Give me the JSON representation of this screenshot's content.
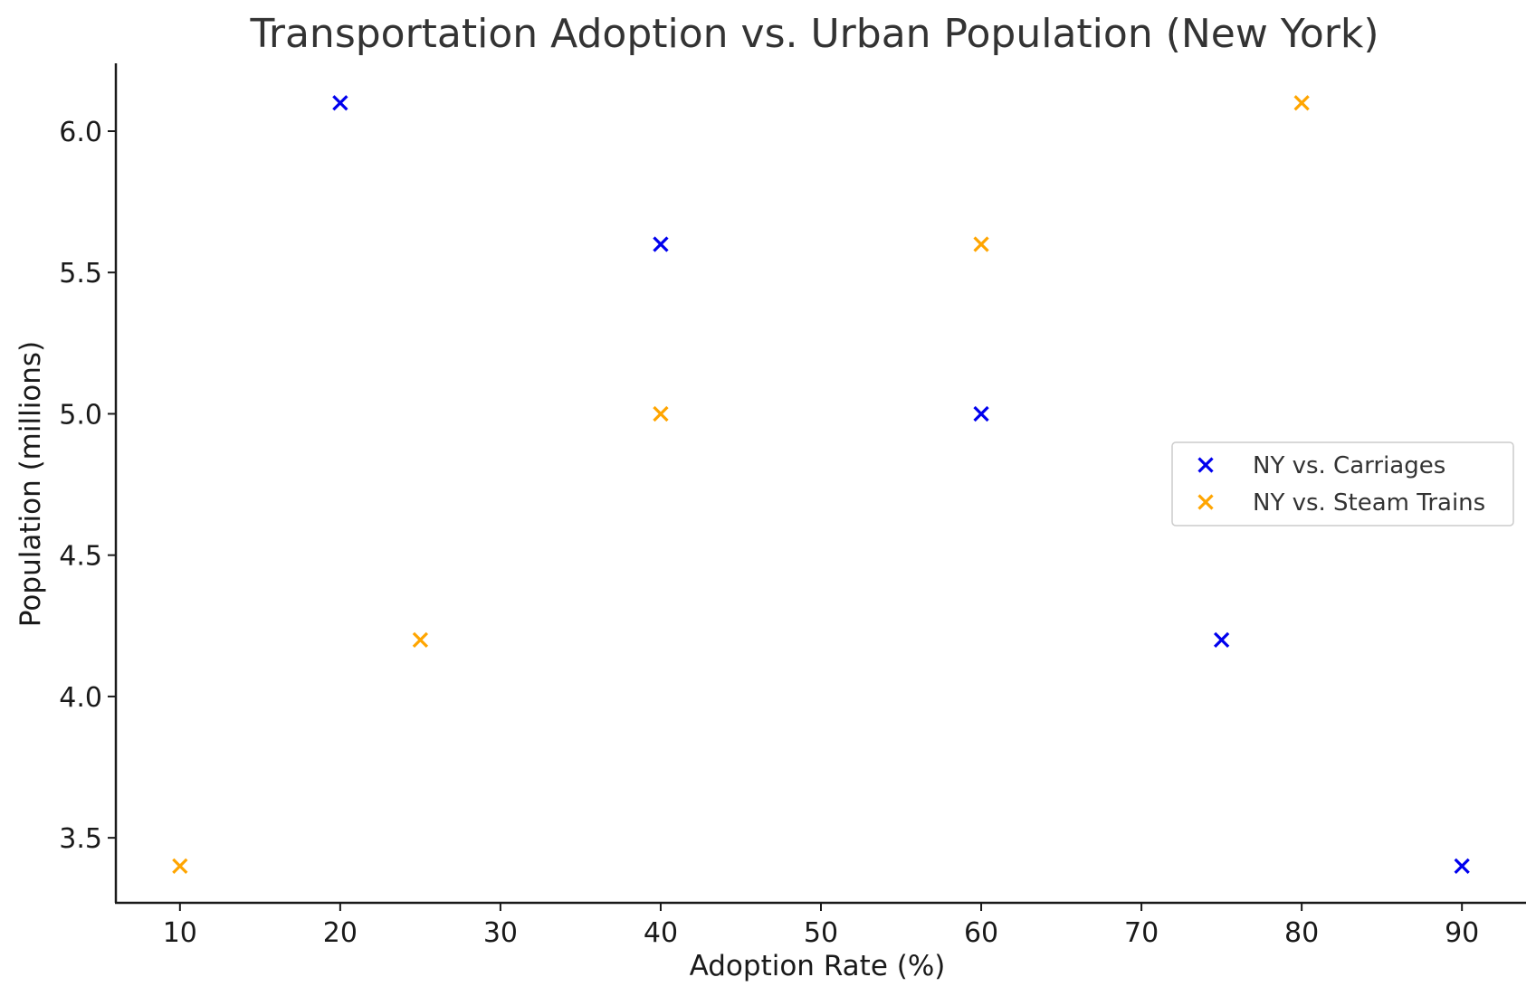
{
  "chart_data": {
    "type": "scatter",
    "title": "Transportation Adoption vs. Urban Population (New York)",
    "xlabel": "Adoption Rate (%)",
    "ylabel": "Population (millions)",
    "xlim": [
      6,
      94
    ],
    "ylim": [
      3.27,
      6.24
    ],
    "xticks": [
      10,
      20,
      30,
      40,
      50,
      60,
      70,
      80,
      90
    ],
    "yticks": [
      3.5,
      4.0,
      4.5,
      5.0,
      5.5,
      6.0
    ],
    "xtick_labels": [
      "10",
      "20",
      "30",
      "40",
      "50",
      "60",
      "70",
      "80",
      "90"
    ],
    "ytick_labels": [
      "3.5",
      "4.0",
      "4.5",
      "5.0",
      "5.5",
      "6.0"
    ],
    "grid": false,
    "legend_position": "center-right",
    "series": [
      {
        "name": "NY vs. Carriages",
        "color": "#0000ee",
        "marker": "x",
        "x": [
          20,
          40,
          60,
          75,
          90
        ],
        "y": [
          6.1,
          5.6,
          5.0,
          4.2,
          3.4
        ]
      },
      {
        "name": "NY vs. Steam Trains",
        "color": "#ffa500",
        "marker": "x",
        "x": [
          10,
          25,
          40,
          60,
          80
        ],
        "y": [
          3.4,
          4.2,
          5.0,
          5.6,
          6.1
        ]
      }
    ]
  }
}
